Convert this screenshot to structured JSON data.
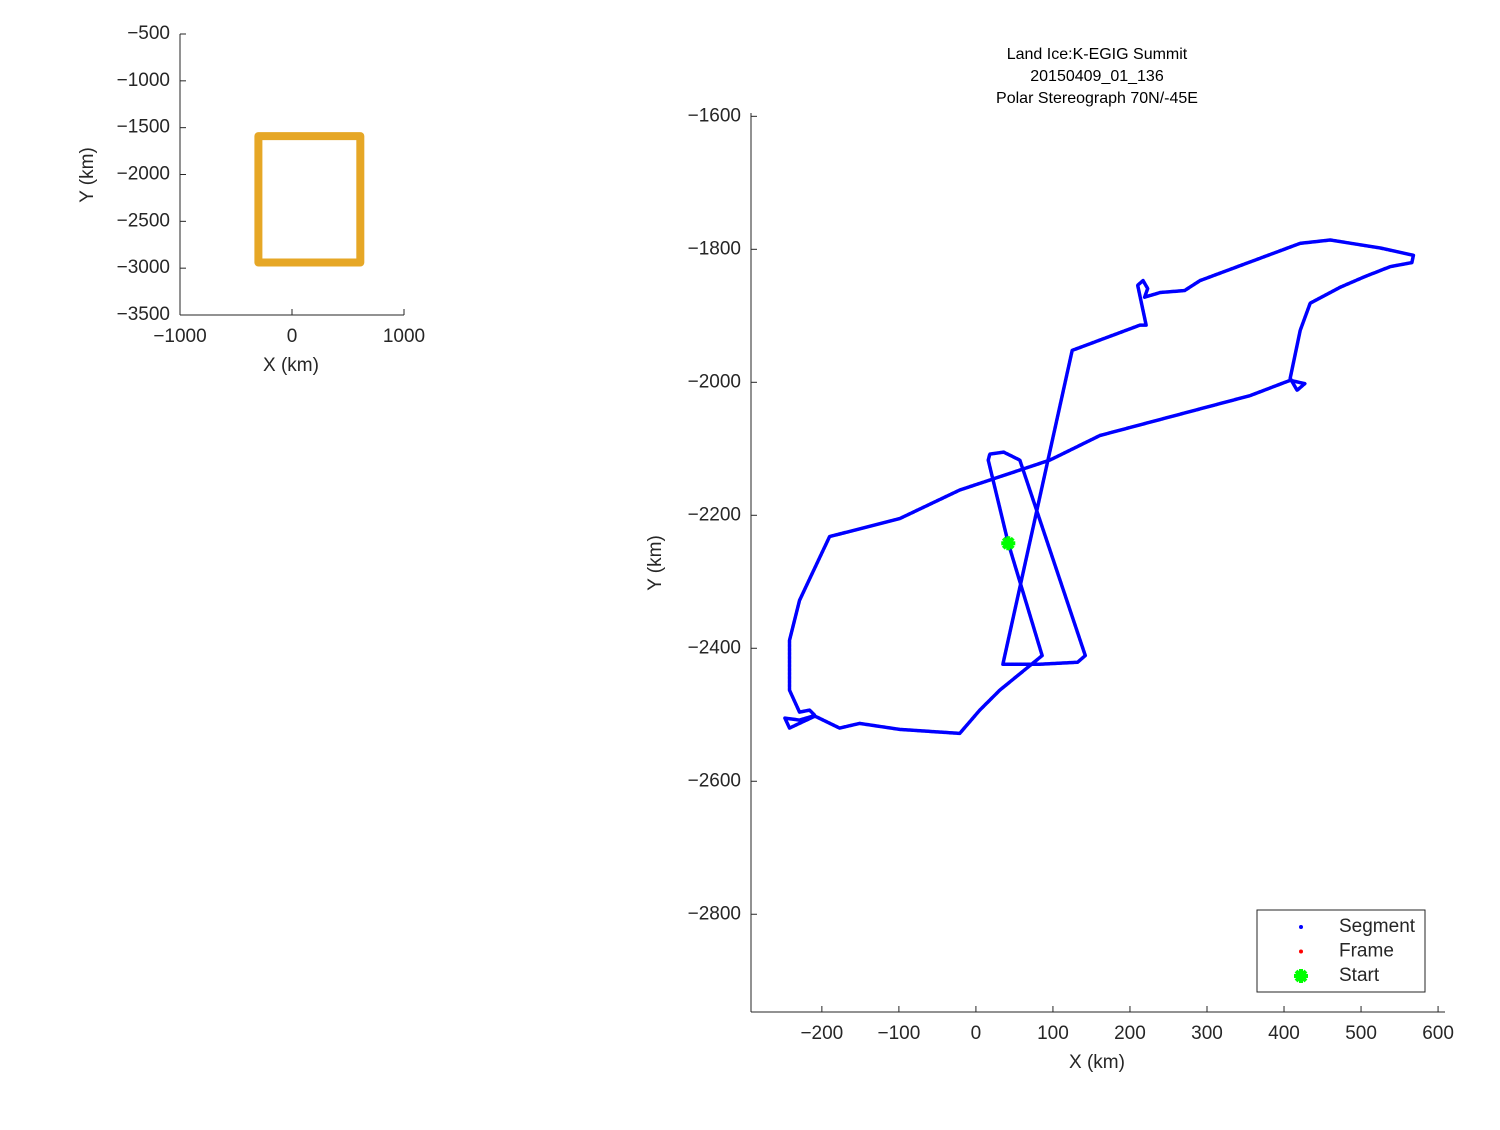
{
  "chart_data": [
    {
      "type": "line",
      "xlabel": "X (km)",
      "ylabel": "Y (km)",
      "xlim": [
        -1000,
        1000
      ],
      "ylim": [
        -3500,
        -500
      ],
      "xticks": [
        {
          "value": -1000,
          "label": "−1000"
        },
        0,
        1000
      ],
      "yticks": [
        {
          "value": -500,
          "label": "−500"
        },
        {
          "value": -1000,
          "label": "−1000"
        },
        {
          "value": -1500,
          "label": "−1500"
        },
        {
          "value": -2000,
          "label": "−2000"
        },
        {
          "value": -2500,
          "label": "−2500"
        },
        {
          "value": -3000,
          "label": "−3000"
        },
        {
          "value": -3500,
          "label": "−3500"
        }
      ],
      "grid": false,
      "series": [
        {
          "color": "#e6a726",
          "x": [
            -300,
            610,
            610,
            -300,
            -300
          ],
          "y": [
            -1590,
            -1590,
            -2940,
            -2940,
            -1590
          ]
        }
      ]
    },
    {
      "type": "line",
      "title": [
        "Land Ice:K-EGIG Summit",
        "20150409_01_136",
        "Polar Stereograph 70N/-45E"
      ],
      "xlabel": "X (km)",
      "ylabel": "Y (km)",
      "xlim": [
        -292,
        609
      ],
      "ylim": [
        -2947,
        -1595
      ],
      "xticks": [
        {
          "value": -200,
          "label": "−200"
        },
        {
          "value": -100,
          "label": "−100"
        },
        0,
        100,
        200,
        300,
        400,
        500,
        600
      ],
      "yticks": [
        {
          "value": -1600,
          "label": "−1600"
        },
        {
          "value": -1800,
          "label": "−1800"
        },
        {
          "value": -2000,
          "label": "−2000"
        },
        {
          "value": -2200,
          "label": "−2200"
        },
        {
          "value": -2400,
          "label": "−2400"
        },
        {
          "value": -2600,
          "label": "−2600"
        },
        {
          "value": -2800,
          "label": "−2800"
        }
      ],
      "grid": false,
      "legend": "lower right",
      "series": [
        {
          "name": "Segment",
          "color": "#0000ff",
          "marker": "dot",
          "x": [
            42,
            16,
            18,
            36,
            57,
            142,
            132,
            83,
            35,
            125,
            213,
            221,
            210,
            217,
            223,
            219,
            239,
            271,
            291,
            421,
            460,
            525,
            568,
            566,
            538,
            505,
            473,
            434,
            421,
            408,
            417,
            427,
            408,
            356,
            161,
            96,
            -21,
            -99,
            -190,
            -229,
            -242,
            -242,
            -229,
            -216,
            -209,
            -229,
            -248,
            -242,
            -209,
            -177,
            -151,
            -99,
            -21,
            5,
            31,
            86,
            42
          ],
          "y": [
            -2242,
            -2117,
            -2108,
            -2105,
            -2117,
            -2411,
            -2421,
            -2424,
            -2424,
            -1952,
            -1914,
            -1914,
            -1854,
            -1847,
            -1859,
            -1872,
            -1865,
            -1862,
            -1847,
            -1791,
            -1786,
            -1798,
            -1809,
            -1820,
            -1826,
            -1841,
            -1857,
            -1881,
            -1922,
            -1994,
            -2012,
            -2002,
            -1997,
            -2020,
            -2080,
            -2117,
            -2162,
            -2205,
            -2232,
            -2328,
            -2388,
            -2463,
            -2496,
            -2493,
            -2501,
            -2508,
            -2505,
            -2520,
            -2502,
            -2520,
            -2513,
            -2522,
            -2528,
            -2493,
            -2463,
            -2411,
            -2242
          ]
        },
        {
          "name": "Frame",
          "color": "#ff0000",
          "marker": "dot",
          "x": [],
          "y": []
        },
        {
          "name": "Start",
          "color": "#00ff00",
          "marker": "asterisk",
          "x": [
            42
          ],
          "y": [
            -2242
          ]
        }
      ]
    }
  ]
}
